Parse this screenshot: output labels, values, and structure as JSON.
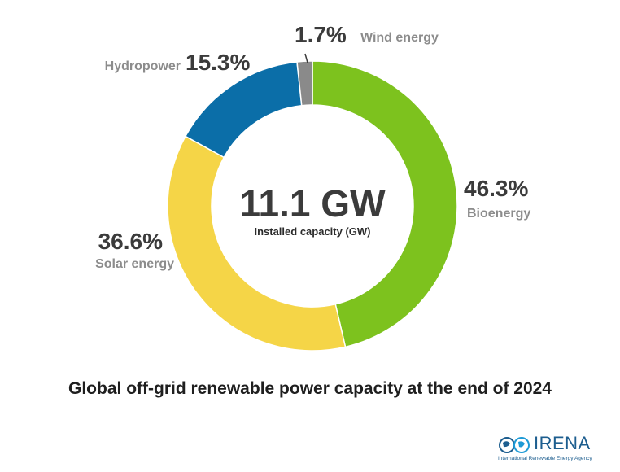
{
  "chart_data": {
    "type": "pie",
    "title": "Global off-grid renewable power capacity at the end of 2024",
    "total": {
      "value": "11.1 GW",
      "label": "Installed capacity (GW)"
    },
    "slices": [
      {
        "name": "Bioenergy",
        "value": 46.3,
        "label": "46.3%",
        "color": "#7dc21e"
      },
      {
        "name": "Solar energy",
        "value": 36.6,
        "label": "36.6%",
        "color": "#f5d547"
      },
      {
        "name": "Hydropower",
        "value": 15.3,
        "label": "15.3%",
        "color": "#0b6ea8"
      },
      {
        "name": "Wind energy",
        "value": 1.7,
        "label": "1.7%",
        "color": "#8a8a8a"
      }
    ]
  },
  "logo": {
    "name": "IRENA",
    "subtitle": "International Renewable Energy Agency"
  }
}
